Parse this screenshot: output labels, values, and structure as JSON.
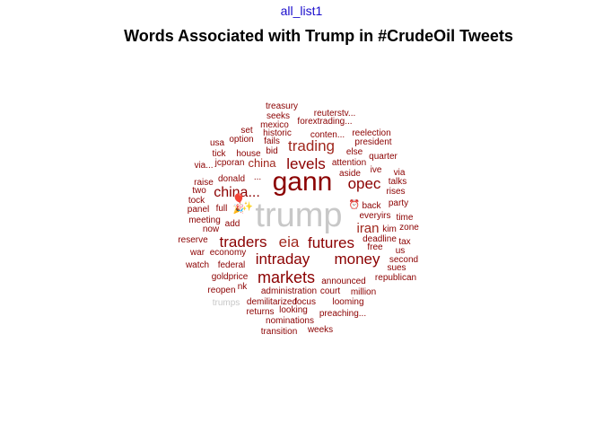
{
  "header": {
    "tab_label": "all_list1",
    "title": "Words Associated with Trump in #CrudeOil Tweets"
  },
  "colors": {
    "link": "#1a0dcc",
    "dark_red": "#8b0000",
    "medium_red": "#a0281e",
    "light_gray": "#c8c8c8"
  },
  "chart_data": {
    "type": "wordcloud",
    "title": "Words Associated with Trump in #CrudeOil Tweets",
    "center_word": "trump",
    "words": [
      {
        "text": "treasury",
        "weight": 1
      },
      {
        "text": "seeks",
        "weight": 1
      },
      {
        "text": "reuterstv...",
        "weight": 1
      },
      {
        "text": "mexico",
        "weight": 1
      },
      {
        "text": "forextrading...",
        "weight": 1
      },
      {
        "text": "set",
        "weight": 1
      },
      {
        "text": "historic",
        "weight": 1
      },
      {
        "text": "conten...",
        "weight": 1
      },
      {
        "text": "reelection",
        "weight": 1
      },
      {
        "text": "usa",
        "weight": 1
      },
      {
        "text": "option",
        "weight": 1
      },
      {
        "text": "fails",
        "weight": 1
      },
      {
        "text": "president",
        "weight": 1
      },
      {
        "text": "trading",
        "weight": 3
      },
      {
        "text": "tick",
        "weight": 1
      },
      {
        "text": "house",
        "weight": 1
      },
      {
        "text": "bid",
        "weight": 1
      },
      {
        "text": "else",
        "weight": 1
      },
      {
        "text": "quarter",
        "weight": 1
      },
      {
        "text": "jcporan",
        "weight": 1
      },
      {
        "text": "attention",
        "weight": 1
      },
      {
        "text": "via...",
        "weight": 1
      },
      {
        "text": "china",
        "weight": 2
      },
      {
        "text": "levels",
        "weight": 3
      },
      {
        "text": "ive",
        "weight": 1
      },
      {
        "text": "via",
        "weight": 1
      },
      {
        "text": "aside",
        "weight": 1
      },
      {
        "text": "donald",
        "weight": 1
      },
      {
        "text": "...",
        "weight": 1
      },
      {
        "text": "talks",
        "weight": 1
      },
      {
        "text": "raise",
        "weight": 1
      },
      {
        "text": "gann",
        "weight": 6
      },
      {
        "text": "opec",
        "weight": 3
      },
      {
        "text": "two",
        "weight": 1
      },
      {
        "text": "china...",
        "weight": 3
      },
      {
        "text": "rises",
        "weight": 1
      },
      {
        "text": "tock",
        "weight": 1
      },
      {
        "text": "party",
        "weight": 1
      },
      {
        "text": "full",
        "weight": 1
      },
      {
        "text": "back",
        "weight": 1
      },
      {
        "text": "panel",
        "weight": 1
      },
      {
        "text": "everyirs",
        "weight": 1
      },
      {
        "text": "time",
        "weight": 1
      },
      {
        "text": "meeting",
        "weight": 1
      },
      {
        "text": "add",
        "weight": 1
      },
      {
        "text": "iran",
        "weight": 3
      },
      {
        "text": "kim",
        "weight": 1
      },
      {
        "text": "zone",
        "weight": 1
      },
      {
        "text": "now",
        "weight": 1
      },
      {
        "text": "reserve",
        "weight": 1
      },
      {
        "text": "traders",
        "weight": 3
      },
      {
        "text": "eia",
        "weight": 3
      },
      {
        "text": "futures",
        "weight": 3
      },
      {
        "text": "deadline",
        "weight": 1
      },
      {
        "text": "tax",
        "weight": 1
      },
      {
        "text": "war",
        "weight": 1
      },
      {
        "text": "economy",
        "weight": 1
      },
      {
        "text": "free",
        "weight": 1
      },
      {
        "text": "us",
        "weight": 1
      },
      {
        "text": "intraday",
        "weight": 3
      },
      {
        "text": "money",
        "weight": 3
      },
      {
        "text": "second",
        "weight": 1
      },
      {
        "text": "watch",
        "weight": 1
      },
      {
        "text": "federal",
        "weight": 1
      },
      {
        "text": "sues",
        "weight": 1
      },
      {
        "text": "goldprice",
        "weight": 1
      },
      {
        "text": "markets",
        "weight": 3
      },
      {
        "text": "announced",
        "weight": 1
      },
      {
        "text": "republican",
        "weight": 1
      },
      {
        "text": "reopen",
        "weight": 1
      },
      {
        "text": "nk",
        "weight": 1
      },
      {
        "text": "administration",
        "weight": 1
      },
      {
        "text": "court",
        "weight": 1
      },
      {
        "text": "million",
        "weight": 1
      },
      {
        "text": "trumps",
        "weight": 1
      },
      {
        "text": "demilitarized",
        "weight": 1
      },
      {
        "text": "focus",
        "weight": 1
      },
      {
        "text": "looming",
        "weight": 1
      },
      {
        "text": "returns",
        "weight": 1
      },
      {
        "text": "looking",
        "weight": 1
      },
      {
        "text": "preaching...",
        "weight": 1
      },
      {
        "text": "nominations",
        "weight": 1
      },
      {
        "text": "transition",
        "weight": 1
      },
      {
        "text": "weeks",
        "weight": 1
      }
    ],
    "emoji_glyphs": [
      "🎈",
      "✨",
      "🎉",
      "⏰"
    ]
  }
}
